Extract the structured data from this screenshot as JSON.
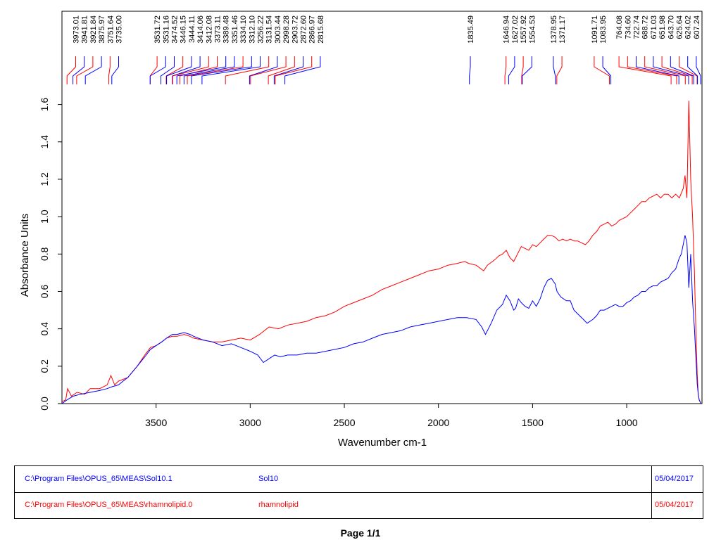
{
  "page": {
    "footer": "Page 1/1"
  },
  "legend": [
    {
      "path": "C:\\Program Files\\OPUS_65\\MEAS\\Sol10.1",
      "name": "Sol10",
      "date": "05/04/2017",
      "color": "#0000ff"
    },
    {
      "path": "C:\\Program Files\\OPUS_65\\MEAS\\rhamnolipid.0",
      "name": "rhamnolipid",
      "date": "05/04/2017",
      "color": "#ff0000"
    }
  ],
  "chart_data": {
    "type": "line",
    "xlabel": "Wavenumber cm-1",
    "ylabel": "Absorbance Units",
    "xlim": [
      4000,
      600
    ],
    "ylim": [
      0.0,
      1.7
    ],
    "x_reversed": true,
    "grid": false,
    "x_ticks": [
      3500,
      3000,
      2500,
      2000,
      1500,
      1000
    ],
    "y_ticks": [
      0.0,
      0.2,
      0.4,
      0.6,
      0.8,
      1.0,
      1.2,
      1.4,
      1.6
    ],
    "y_tick_labels": [
      "0.0",
      "0.2",
      "0.4",
      "0.6",
      "0.8",
      "1.0",
      "1.2",
      "1.4",
      "1.6"
    ],
    "series": [
      {
        "name": "Sol10",
        "color": "#0000ff",
        "x": [
          4000,
          3973,
          3940,
          3900,
          3850,
          3800,
          3760,
          3735,
          3700,
          3650,
          3600,
          3560,
          3530,
          3500,
          3470,
          3444,
          3414,
          3389,
          3351,
          3320,
          3300,
          3250,
          3200,
          3150,
          3100,
          3050,
          3000,
          2960,
          2930,
          2900,
          2870,
          2840,
          2800,
          2750,
          2700,
          2650,
          2600,
          2550,
          2500,
          2450,
          2400,
          2350,
          2300,
          2250,
          2200,
          2150,
          2100,
          2050,
          2000,
          1950,
          1900,
          1850,
          1800,
          1770,
          1750,
          1720,
          1690,
          1660,
          1640,
          1620,
          1600,
          1590,
          1575,
          1560,
          1540,
          1520,
          1500,
          1480,
          1460,
          1440,
          1420,
          1400,
          1380,
          1370,
          1350,
          1320,
          1300,
          1280,
          1260,
          1230,
          1210,
          1180,
          1160,
          1140,
          1120,
          1100,
          1080,
          1060,
          1040,
          1020,
          1000,
          980,
          960,
          940,
          920,
          900,
          880,
          860,
          840,
          820,
          800,
          780,
          760,
          740,
          730,
          720,
          710,
          700,
          690,
          680,
          670,
          660,
          650,
          640,
          635,
          630,
          625,
          620,
          615,
          610,
          607
        ],
        "y": [
          0.0,
          0.02,
          0.04,
          0.05,
          0.06,
          0.07,
          0.08,
          0.09,
          0.1,
          0.14,
          0.2,
          0.25,
          0.29,
          0.31,
          0.33,
          0.35,
          0.37,
          0.37,
          0.38,
          0.37,
          0.36,
          0.34,
          0.33,
          0.31,
          0.32,
          0.3,
          0.28,
          0.26,
          0.22,
          0.24,
          0.26,
          0.25,
          0.26,
          0.26,
          0.27,
          0.27,
          0.28,
          0.29,
          0.3,
          0.32,
          0.33,
          0.35,
          0.37,
          0.38,
          0.39,
          0.41,
          0.42,
          0.43,
          0.44,
          0.45,
          0.46,
          0.46,
          0.45,
          0.41,
          0.37,
          0.43,
          0.5,
          0.53,
          0.58,
          0.55,
          0.5,
          0.51,
          0.56,
          0.54,
          0.52,
          0.51,
          0.55,
          0.52,
          0.56,
          0.62,
          0.66,
          0.67,
          0.64,
          0.6,
          0.57,
          0.55,
          0.55,
          0.5,
          0.48,
          0.45,
          0.43,
          0.45,
          0.47,
          0.5,
          0.5,
          0.51,
          0.52,
          0.53,
          0.52,
          0.52,
          0.54,
          0.55,
          0.57,
          0.58,
          0.6,
          0.6,
          0.62,
          0.63,
          0.63,
          0.65,
          0.66,
          0.67,
          0.7,
          0.72,
          0.75,
          0.78,
          0.8,
          0.85,
          0.9,
          0.86,
          0.62,
          0.8,
          0.55,
          0.4,
          0.3,
          0.2,
          0.1,
          0.05,
          0.02,
          0.01,
          0.0
        ]
      },
      {
        "name": "rhamnolipid",
        "color": "#ff0000",
        "x": [
          4000,
          3980,
          3970,
          3950,
          3920,
          3880,
          3850,
          3800,
          3760,
          3740,
          3720,
          3700,
          3650,
          3600,
          3560,
          3530,
          3500,
          3470,
          3444,
          3414,
          3389,
          3351,
          3320,
          3300,
          3250,
          3200,
          3150,
          3100,
          3050,
          3000,
          2950,
          2900,
          2850,
          2800,
          2750,
          2700,
          2650,
          2600,
          2550,
          2500,
          2450,
          2400,
          2350,
          2300,
          2250,
          2200,
          2150,
          2100,
          2050,
          2000,
          1950,
          1900,
          1860,
          1840,
          1800,
          1760,
          1740,
          1700,
          1680,
          1660,
          1640,
          1620,
          1600,
          1580,
          1560,
          1540,
          1520,
          1500,
          1480,
          1460,
          1440,
          1420,
          1400,
          1380,
          1360,
          1340,
          1320,
          1300,
          1280,
          1260,
          1240,
          1220,
          1200,
          1180,
          1160,
          1140,
          1120,
          1100,
          1080,
          1060,
          1040,
          1020,
          1000,
          980,
          960,
          940,
          920,
          900,
          880,
          860,
          840,
          820,
          800,
          780,
          760,
          740,
          720,
          700,
          690,
          680,
          670,
          660,
          650,
          640,
          635,
          630,
          625,
          620,
          615,
          610,
          607
        ],
        "y": [
          0.01,
          0.02,
          0.08,
          0.04,
          0.06,
          0.05,
          0.08,
          0.08,
          0.1,
          0.15,
          0.1,
          0.12,
          0.14,
          0.2,
          0.26,
          0.3,
          0.31,
          0.33,
          0.35,
          0.36,
          0.36,
          0.37,
          0.36,
          0.35,
          0.34,
          0.33,
          0.33,
          0.34,
          0.35,
          0.34,
          0.37,
          0.41,
          0.4,
          0.42,
          0.43,
          0.44,
          0.46,
          0.47,
          0.49,
          0.52,
          0.54,
          0.56,
          0.58,
          0.61,
          0.63,
          0.65,
          0.67,
          0.69,
          0.71,
          0.72,
          0.74,
          0.75,
          0.76,
          0.75,
          0.74,
          0.71,
          0.74,
          0.77,
          0.79,
          0.8,
          0.82,
          0.78,
          0.76,
          0.8,
          0.84,
          0.83,
          0.82,
          0.85,
          0.84,
          0.86,
          0.88,
          0.9,
          0.9,
          0.89,
          0.87,
          0.88,
          0.87,
          0.88,
          0.87,
          0.87,
          0.86,
          0.85,
          0.87,
          0.9,
          0.92,
          0.95,
          0.96,
          0.97,
          0.95,
          0.96,
          0.98,
          0.99,
          1.0,
          1.02,
          1.04,
          1.06,
          1.08,
          1.08,
          1.1,
          1.11,
          1.12,
          1.1,
          1.12,
          1.12,
          1.1,
          1.12,
          1.1,
          1.15,
          1.22,
          1.1,
          1.62,
          1.2,
          1.0,
          0.7,
          0.5,
          0.3,
          0.15,
          0.05,
          0.02,
          0.01,
          0.0
        ]
      }
    ],
    "peak_labels": [
      {
        "value": "3973.01",
        "color": "#ff0000",
        "x": 3973.01
      },
      {
        "value": "3941.81",
        "color": "#0000ff",
        "x": 3941.81
      },
      {
        "value": "3921.84",
        "color": "#ff0000",
        "x": 3921.84
      },
      {
        "value": "3875.97",
        "color": "#0000ff",
        "x": 3875.97
      },
      {
        "value": "3751.64",
        "color": "#ff0000",
        "x": 3751.64
      },
      {
        "value": "3735.00",
        "color": "#0000ff",
        "x": 3735.0
      },
      {
        "value": "3531.72",
        "color": "#ff0000",
        "x": 3531.72
      },
      {
        "value": "3531.16",
        "color": "#0000ff",
        "x": 3531.16
      },
      {
        "value": "3474.52",
        "color": "#0000ff",
        "x": 3474.52
      },
      {
        "value": "3446.15",
        "color": "#ff0000",
        "x": 3446.15
      },
      {
        "value": "3444.11",
        "color": "#0000ff",
        "x": 3444.11
      },
      {
        "value": "3414.06",
        "color": "#0000ff",
        "x": 3414.06
      },
      {
        "value": "3412.08",
        "color": "#ff0000",
        "x": 3412.08
      },
      {
        "value": "3373.11",
        "color": "#ff0000",
        "x": 3373.11
      },
      {
        "value": "3389.48",
        "color": "#0000ff",
        "x": 3389.48
      },
      {
        "value": "3351.46",
        "color": "#0000ff",
        "x": 3351.46
      },
      {
        "value": "3334.10",
        "color": "#ff0000",
        "x": 3334.1
      },
      {
        "value": "3312.10",
        "color": "#0000ff",
        "x": 3312.1
      },
      {
        "value": "3256.22",
        "color": "#0000ff",
        "x": 3256.22
      },
      {
        "value": "3131.54",
        "color": "#ff0000",
        "x": 3131.54
      },
      {
        "value": "3003.44",
        "color": "#0000ff",
        "x": 3003.44
      },
      {
        "value": "2998.28",
        "color": "#ff0000",
        "x": 2998.28
      },
      {
        "value": "2903.72",
        "color": "#ff0000",
        "x": 2903.72
      },
      {
        "value": "2872.60",
        "color": "#0000ff",
        "x": 2872.6
      },
      {
        "value": "2866.97",
        "color": "#ff0000",
        "x": 2866.97
      },
      {
        "value": "2815.68",
        "color": "#0000ff",
        "x": 2815.68
      },
      {
        "value": "1835.49",
        "color": "#0000ff",
        "x": 1835.49
      },
      {
        "value": "1646.94",
        "color": "#ff0000",
        "x": 1646.94
      },
      {
        "value": "1627.02",
        "color": "#0000ff",
        "x": 1627.02
      },
      {
        "value": "1557.92",
        "color": "#ff0000",
        "x": 1557.92
      },
      {
        "value": "1554.53",
        "color": "#0000ff",
        "x": 1554.53
      },
      {
        "value": "1378.95",
        "color": "#0000ff",
        "x": 1378.95
      },
      {
        "value": "1371.17",
        "color": "#ff0000",
        "x": 1371.17
      },
      {
        "value": "1091.71",
        "color": "#ff0000",
        "x": 1091.71
      },
      {
        "value": "1083.95",
        "color": "#0000ff",
        "x": 1083.95
      },
      {
        "value": "764.08",
        "color": "#ff0000",
        "x": 764.08
      },
      {
        "value": "734.60",
        "color": "#ff0000",
        "x": 734.6
      },
      {
        "value": "722.74",
        "color": "#0000ff",
        "x": 722.74
      },
      {
        "value": "688.72",
        "color": "#ff0000",
        "x": 688.72
      },
      {
        "value": "671.03",
        "color": "#0000ff",
        "x": 671.03
      },
      {
        "value": "651.98",
        "color": "#ff0000",
        "x": 651.98
      },
      {
        "value": "643.70",
        "color": "#0000ff",
        "x": 643.7
      },
      {
        "value": "625.64",
        "color": "#ff0000",
        "x": 625.64
      },
      {
        "value": "624.02",
        "color": "#0000ff",
        "x": 624.02
      },
      {
        "value": "607.24",
        "color": "#0000ff",
        "x": 607.24
      }
    ]
  }
}
